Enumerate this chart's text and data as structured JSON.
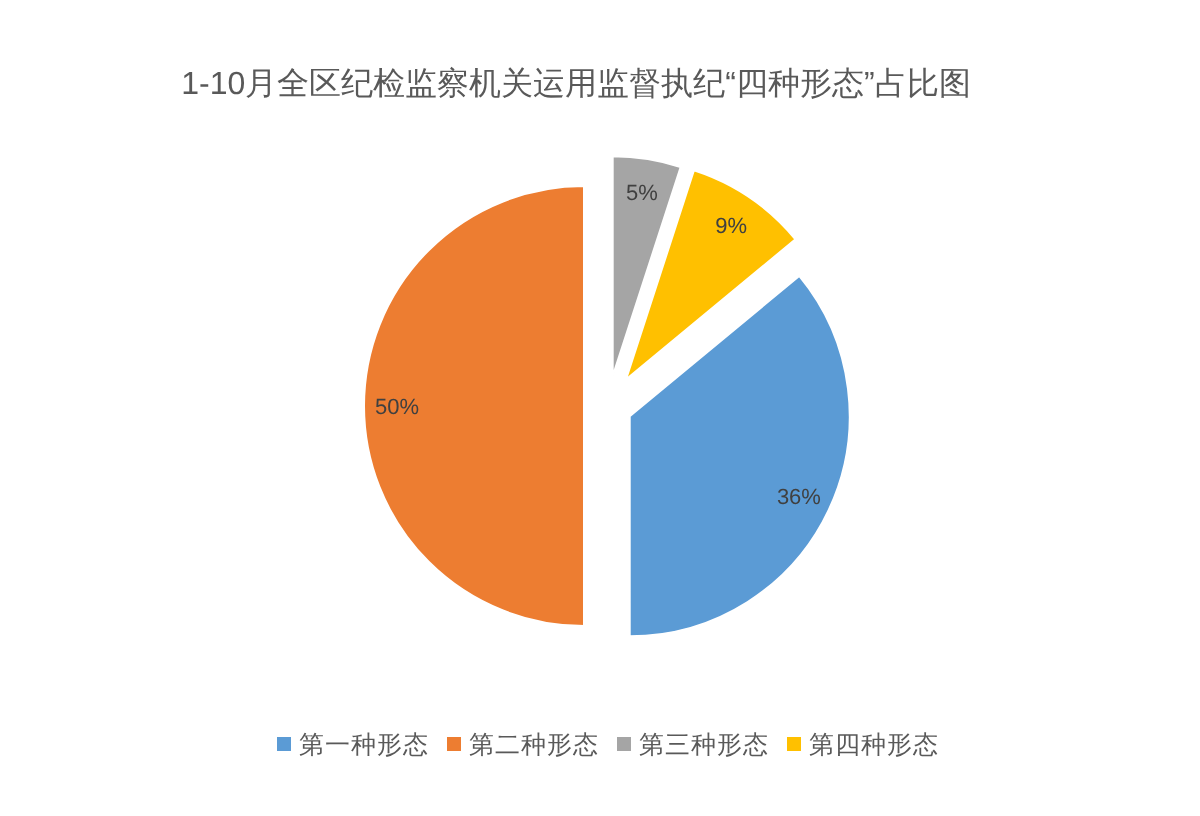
{
  "chart_data": {
    "type": "pie",
    "title": "1-10月全区纪检监察机关运用监督执纪“四种形态”占比图",
    "categories": [
      "第一种形态",
      "第二种形态",
      "第三种形态",
      "第四种形态"
    ],
    "values": [
      36,
      50,
      5,
      9
    ],
    "colors": [
      "#5b9bd5",
      "#ed7d31",
      "#a5a5a5",
      "#ffc000"
    ],
    "value_labels": [
      "36%",
      "50%",
      "5%",
      "9%"
    ],
    "legend": "bottom"
  }
}
